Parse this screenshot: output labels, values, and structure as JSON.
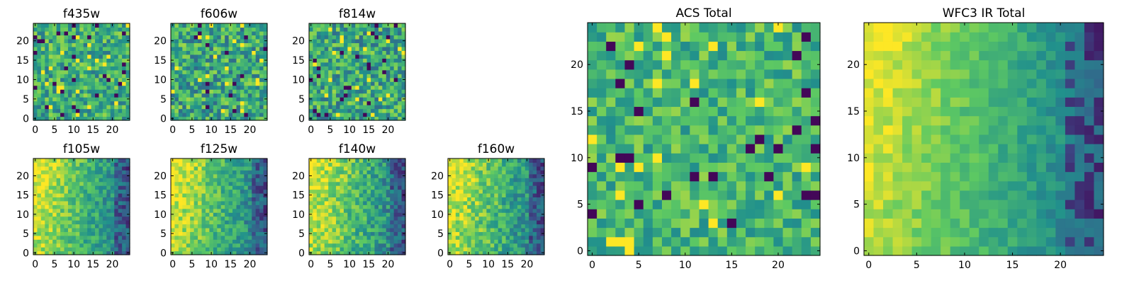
{
  "colors": {
    "colormap": "viridis",
    "stops": [
      "#440154",
      "#3b528b",
      "#21918c",
      "#5ec962",
      "#fde725"
    ],
    "background": "#ffffff",
    "frame": "#000000"
  },
  "chart_data": [
    {
      "type": "heatmap",
      "title": "f435w",
      "grid_size": 25,
      "xlim": [
        0,
        24
      ],
      "ylim": [
        0,
        24
      ],
      "xticks": [
        0,
        5,
        10,
        15,
        20
      ],
      "yticks": [
        0,
        5,
        10,
        15,
        20
      ],
      "value_range": [
        0,
        1
      ],
      "pattern": "noise",
      "seed": 11,
      "mean": 0.62,
      "spread": 0.5
    },
    {
      "type": "heatmap",
      "title": "f606w",
      "grid_size": 25,
      "xlim": [
        0,
        24
      ],
      "ylim": [
        0,
        24
      ],
      "xticks": [
        0,
        5,
        10,
        15,
        20
      ],
      "yticks": [
        0,
        5,
        10,
        15,
        20
      ],
      "value_range": [
        0,
        1
      ],
      "pattern": "noise",
      "seed": 23,
      "mean": 0.6,
      "spread": 0.55
    },
    {
      "type": "heatmap",
      "title": "f814w",
      "grid_size": 25,
      "xlim": [
        0,
        24
      ],
      "ylim": [
        0,
        24
      ],
      "xticks": [
        0,
        5,
        10,
        15,
        20
      ],
      "yticks": [
        0,
        5,
        10,
        15,
        20
      ],
      "value_range": [
        0,
        1
      ],
      "pattern": "noise",
      "seed": 37,
      "mean": 0.6,
      "spread": 0.55
    },
    {
      "type": "heatmap",
      "title": "f105w",
      "grid_size": 25,
      "xlim": [
        0,
        24
      ],
      "ylim": [
        0,
        24
      ],
      "xticks": [
        0,
        5,
        10,
        15,
        20
      ],
      "yticks": [
        0,
        5,
        10,
        15,
        20
      ],
      "value_range": [
        0,
        1
      ],
      "pattern": "gradient",
      "seed": 41,
      "spread": 0.3
    },
    {
      "type": "heatmap",
      "title": "f125w",
      "grid_size": 25,
      "xlim": [
        0,
        24
      ],
      "ylim": [
        0,
        24
      ],
      "xticks": [
        0,
        5,
        10,
        15,
        20
      ],
      "yticks": [
        0,
        5,
        10,
        15,
        20
      ],
      "value_range": [
        0,
        1
      ],
      "pattern": "gradient",
      "seed": 53,
      "spread": 0.32
    },
    {
      "type": "heatmap",
      "title": "f140w",
      "grid_size": 25,
      "xlim": [
        0,
        24
      ],
      "ylim": [
        0,
        24
      ],
      "xticks": [
        0,
        5,
        10,
        15,
        20
      ],
      "yticks": [
        0,
        5,
        10,
        15,
        20
      ],
      "value_range": [
        0,
        1
      ],
      "pattern": "gradient",
      "seed": 67,
      "spread": 0.35
    },
    {
      "type": "heatmap",
      "title": "f160w",
      "grid_size": 25,
      "xlim": [
        0,
        24
      ],
      "ylim": [
        0,
        24
      ],
      "xticks": [
        0,
        5,
        10,
        15,
        20
      ],
      "yticks": [
        0,
        5,
        10,
        15,
        20
      ],
      "value_range": [
        0,
        1
      ],
      "pattern": "gradient",
      "seed": 79,
      "spread": 0.35
    },
    {
      "type": "heatmap",
      "title": "ACS Total",
      "grid_size": 25,
      "xlim": [
        0,
        24
      ],
      "ylim": [
        0,
        24
      ],
      "xticks": [
        0,
        5,
        10,
        15,
        20
      ],
      "yticks": [
        0,
        5,
        10,
        15,
        20
      ],
      "value_range": [
        0,
        1
      ],
      "pattern": "noise",
      "seed": 97,
      "mean": 0.66,
      "spread": 0.4
    },
    {
      "type": "heatmap",
      "title": "WFC3 IR Total",
      "grid_size": 25,
      "xlim": [
        0,
        24
      ],
      "ylim": [
        0,
        24
      ],
      "xticks": [
        0,
        5,
        10,
        15,
        20
      ],
      "yticks": [
        0,
        5,
        10,
        15,
        20
      ],
      "value_range": [
        0,
        1
      ],
      "pattern": "gradient",
      "seed": 113,
      "spread": 0.18
    }
  ]
}
